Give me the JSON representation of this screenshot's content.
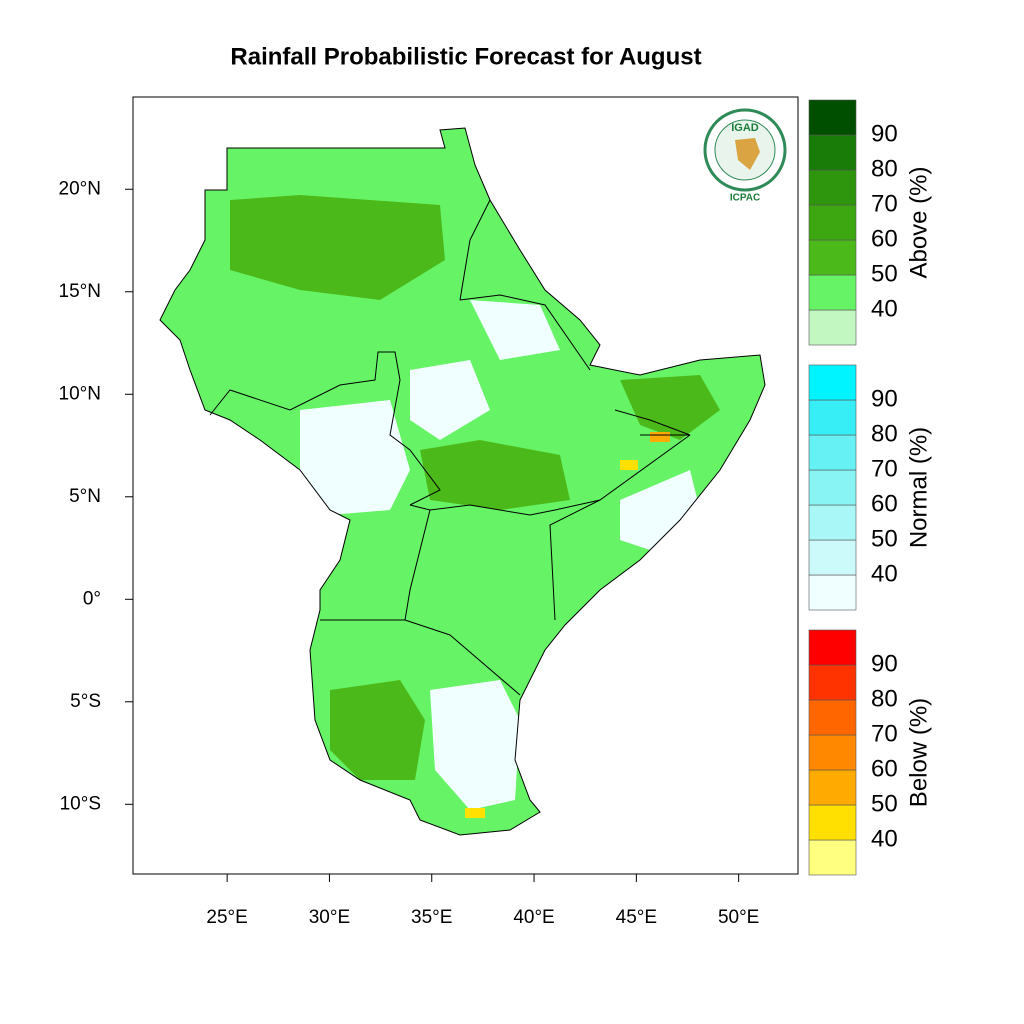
{
  "title": "Rainfall Probabilistic Forecast for August",
  "logo": {
    "name": "IGAD",
    "caption": "ICPAC"
  },
  "map": {
    "xlim": [
      20.4,
      52.9
    ],
    "ylim": [
      -13.4,
      24.5
    ],
    "xticks": [
      {
        "value": 25,
        "label": "25°E"
      },
      {
        "value": 30,
        "label": "30°E"
      },
      {
        "value": 35,
        "label": "35°E"
      },
      {
        "value": 40,
        "label": "40°E"
      },
      {
        "value": 45,
        "label": "45°E"
      },
      {
        "value": 50,
        "label": "50°E"
      }
    ],
    "yticks": [
      {
        "value": 20,
        "label": "20°N"
      },
      {
        "value": 15,
        "label": "15°N"
      },
      {
        "value": 10,
        "label": "10°N"
      },
      {
        "value": 5,
        "label": "5°N"
      },
      {
        "value": 0,
        "label": "0°"
      },
      {
        "value": -5,
        "label": "5°S"
      },
      {
        "value": -10,
        "label": "10°S"
      }
    ]
  },
  "colorbars": [
    {
      "label": "Above (%)",
      "ticks": [
        40,
        50,
        60,
        70,
        80,
        90
      ],
      "colors": [
        "#c2f7c2",
        "#66f466",
        "#4cb91a",
        "#3da712",
        "#2e960c",
        "#197b08",
        "#004f00"
      ]
    },
    {
      "label": "Normal (%)",
      "ticks": [
        40,
        50,
        60,
        70,
        80,
        90
      ],
      "colors": [
        "#f0ffff",
        "#ccfafa",
        "#a9f7f7",
        "#88f4f4",
        "#66f2f4",
        "#38eef6",
        "#00f4ff"
      ]
    },
    {
      "label": "Below (%)",
      "ticks": [
        40,
        50,
        60,
        70,
        80,
        90
      ],
      "colors": [
        "#ffff80",
        "#ffe000",
        "#ffaa00",
        "#ff8800",
        "#ff6600",
        "#ff3300",
        "#ff0000"
      ]
    }
  ]
}
